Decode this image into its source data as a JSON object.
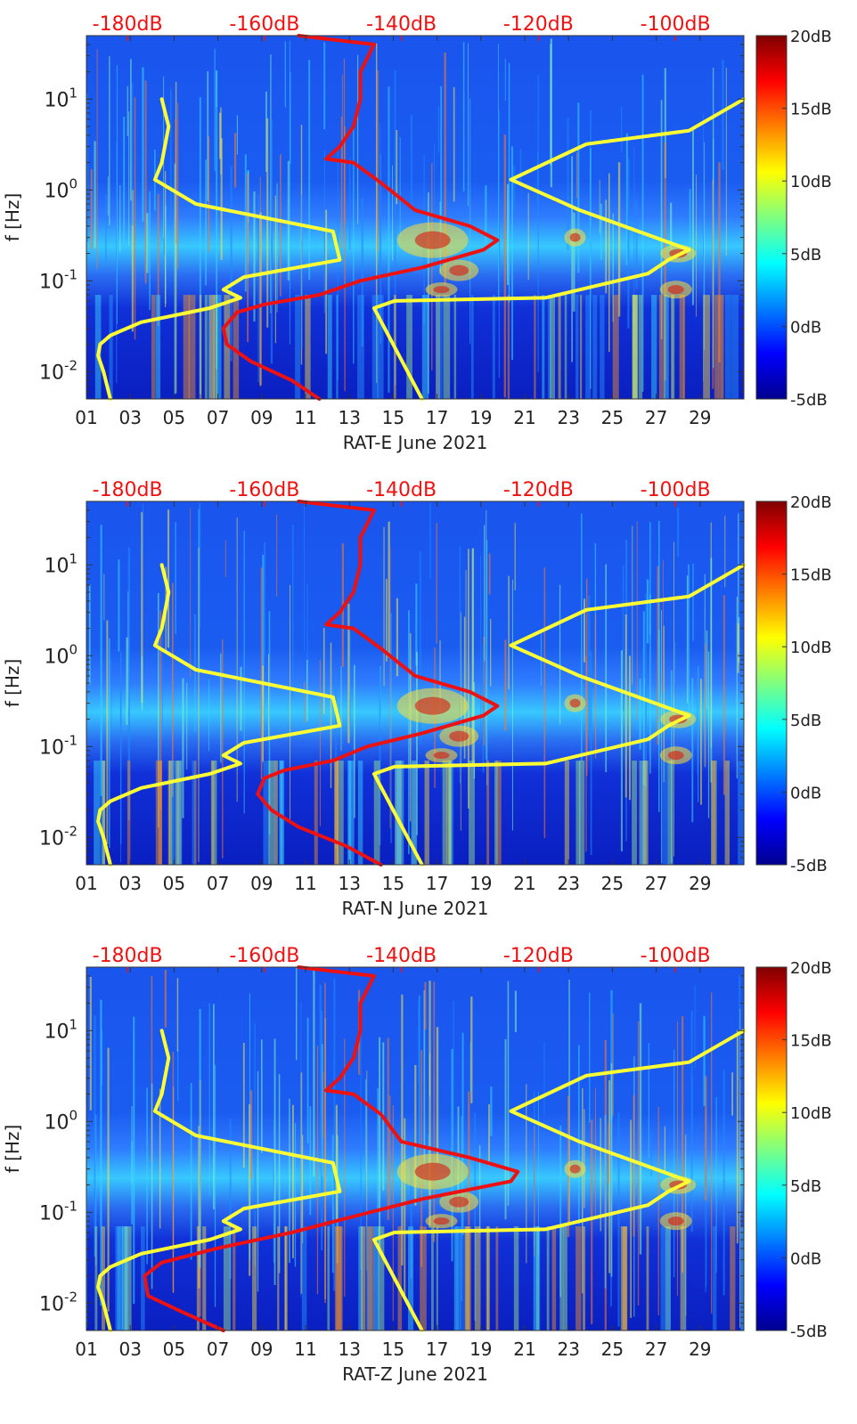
{
  "chart_data": [
    {
      "type": "heatmap",
      "panel": "RAT-E",
      "title": "",
      "xlabel": "RAT-E June 2021",
      "ylabel": "f [Hz]",
      "x_unit": "day of month",
      "xlim": [
        1,
        31
      ],
      "x_ticks": [
        "01",
        "03",
        "05",
        "07",
        "09",
        "11",
        "13",
        "15",
        "17",
        "19",
        "21",
        "23",
        "25",
        "27",
        "29"
      ],
      "y_scale": "log",
      "ylim": [
        0.005,
        50
      ],
      "y_ticks": [
        "10^-2",
        "10^-1",
        "10^0",
        "10^1"
      ],
      "top_axis_ticks": [
        "-180dB",
        "-160dB",
        "-140dB",
        "-120dB",
        "-100dB"
      ],
      "top_axis_range_dB": [
        -186,
        -90
      ],
      "colorbar": {
        "range_dB": [
          -5,
          20
        ],
        "ticks": [
          "-5dB",
          "0dB",
          "5dB",
          "10dB",
          "15dB",
          "20dB"
        ],
        "colormap": "jet"
      },
      "series": [
        {
          "name": "yellow-noise-model-low",
          "color": "#ffff33",
          "points": [
            [
              -182.5,
              0.005
            ],
            [
              -183.5,
              0.01
            ],
            [
              -184.3,
              0.015
            ],
            [
              -184,
              0.02
            ],
            [
              -182.5,
              0.025
            ],
            [
              -178,
              0.035
            ],
            [
              -168,
              0.05
            ],
            [
              -163.5,
              0.065
            ],
            [
              -166,
              0.08
            ],
            [
              -163,
              0.11
            ],
            [
              -149,
              0.17
            ],
            [
              -150,
              0.35
            ],
            [
              -170,
              0.7
            ],
            [
              -176,
              1.3
            ],
            [
              -175,
              2
            ],
            [
              -174,
              5
            ],
            [
              -175,
              10
            ]
          ]
        },
        {
          "name": "yellow-noise-model-high",
          "color": "#ffff33",
          "points": [
            [
              -137,
              0.005
            ],
            [
              -144,
              0.05
            ],
            [
              -141,
              0.06
            ],
            [
              -119,
              0.065
            ],
            [
              -104,
              0.12
            ],
            [
              -101,
              0.17
            ],
            [
              -98,
              0.22
            ],
            [
              -114,
              0.6
            ],
            [
              -124,
              1.3
            ],
            [
              -113,
              3.2
            ],
            [
              -98,
              4.5
            ],
            [
              -90,
              10
            ]
          ]
        },
        {
          "name": "red-median-psd",
          "color": "#ee1111",
          "points": [
            [
              -152,
              0.005
            ],
            [
              -156,
              0.008
            ],
            [
              -162,
              0.013
            ],
            [
              -165.5,
              0.02
            ],
            [
              -166,
              0.03
            ],
            [
              -164,
              0.045
            ],
            [
              -160,
              0.055
            ],
            [
              -152,
              0.07
            ],
            [
              -146,
              0.1
            ],
            [
              -137,
              0.14
            ],
            [
              -128,
              0.22
            ],
            [
              -126,
              0.28
            ],
            [
              -130,
              0.4
            ],
            [
              -138,
              0.6
            ],
            [
              -143,
              1.2
            ],
            [
              -147,
              2
            ],
            [
              -151,
              2.2
            ],
            [
              -149,
              3
            ],
            [
              -147,
              5
            ],
            [
              -146,
              10
            ],
            [
              -146,
              20
            ],
            [
              -144,
              40
            ],
            [
              -155,
              50
            ]
          ]
        }
      ]
    },
    {
      "type": "heatmap",
      "panel": "RAT-N",
      "title": "",
      "xlabel": "RAT-N June 2021",
      "ylabel": "f [Hz]",
      "x_unit": "day of month",
      "xlim": [
        1,
        31
      ],
      "x_ticks": [
        "01",
        "03",
        "05",
        "07",
        "09",
        "11",
        "13",
        "15",
        "17",
        "19",
        "21",
        "23",
        "25",
        "27",
        "29"
      ],
      "y_scale": "log",
      "ylim": [
        0.005,
        50
      ],
      "y_ticks": [
        "10^-2",
        "10^-1",
        "10^0",
        "10^1"
      ],
      "top_axis_ticks": [
        "-180dB",
        "-160dB",
        "-140dB",
        "-120dB",
        "-100dB"
      ],
      "top_axis_range_dB": [
        -186,
        -90
      ],
      "colorbar": {
        "range_dB": [
          -5,
          20
        ],
        "ticks": [
          "-5dB",
          "0dB",
          "5dB",
          "10dB",
          "15dB",
          "20dB"
        ],
        "colormap": "jet"
      },
      "series": [
        {
          "name": "yellow-noise-model-low",
          "color": "#ffff33",
          "points": [
            [
              -182.5,
              0.005
            ],
            [
              -183.5,
              0.01
            ],
            [
              -184.3,
              0.015
            ],
            [
              -184,
              0.02
            ],
            [
              -182.5,
              0.025
            ],
            [
              -178,
              0.035
            ],
            [
              -168,
              0.05
            ],
            [
              -163.5,
              0.065
            ],
            [
              -166,
              0.08
            ],
            [
              -163,
              0.11
            ],
            [
              -149,
              0.17
            ],
            [
              -150,
              0.35
            ],
            [
              -170,
              0.7
            ],
            [
              -176,
              1.3
            ],
            [
              -175,
              2
            ],
            [
              -174,
              5
            ],
            [
              -175,
              10
            ]
          ]
        },
        {
          "name": "yellow-noise-model-high",
          "color": "#ffff33",
          "points": [
            [
              -137,
              0.005
            ],
            [
              -144,
              0.05
            ],
            [
              -141,
              0.06
            ],
            [
              -119,
              0.065
            ],
            [
              -104,
              0.12
            ],
            [
              -101,
              0.17
            ],
            [
              -98,
              0.22
            ],
            [
              -114,
              0.6
            ],
            [
              -124,
              1.3
            ],
            [
              -113,
              3.2
            ],
            [
              -98,
              4.5
            ],
            [
              -90,
              10
            ]
          ]
        },
        {
          "name": "red-median-psd",
          "color": "#ee1111",
          "points": [
            [
              -143,
              0.005
            ],
            [
              -148,
              0.008
            ],
            [
              -155,
              0.013
            ],
            [
              -159,
              0.02
            ],
            [
              -161,
              0.03
            ],
            [
              -160,
              0.045
            ],
            [
              -157,
              0.055
            ],
            [
              -150,
              0.07
            ],
            [
              -145,
              0.1
            ],
            [
              -137,
              0.14
            ],
            [
              -128,
              0.22
            ],
            [
              -126,
              0.28
            ],
            [
              -130,
              0.4
            ],
            [
              -138,
              0.6
            ],
            [
              -143,
              1.2
            ],
            [
              -147,
              2
            ],
            [
              -151,
              2.2
            ],
            [
              -149,
              3
            ],
            [
              -147,
              5
            ],
            [
              -146,
              10
            ],
            [
              -146,
              20
            ],
            [
              -144,
              40
            ],
            [
              -155,
              50
            ]
          ]
        }
      ]
    },
    {
      "type": "heatmap",
      "panel": "RAT-Z",
      "title": "",
      "xlabel": "RAT-Z June 2021",
      "ylabel": "f [Hz]",
      "x_unit": "day of month",
      "xlim": [
        1,
        31
      ],
      "x_ticks": [
        "01",
        "03",
        "05",
        "07",
        "09",
        "11",
        "13",
        "15",
        "17",
        "19",
        "21",
        "23",
        "25",
        "27",
        "29"
      ],
      "y_scale": "log",
      "ylim": [
        0.005,
        50
      ],
      "y_ticks": [
        "10^-2",
        "10^-1",
        "10^0",
        "10^1"
      ],
      "top_axis_ticks": [
        "-180dB",
        "-160dB",
        "-140dB",
        "-120dB",
        "-100dB"
      ],
      "top_axis_range_dB": [
        -186,
        -90
      ],
      "colorbar": {
        "range_dB": [
          -5,
          20
        ],
        "ticks": [
          "-5dB",
          "0dB",
          "5dB",
          "10dB",
          "15dB",
          "20dB"
        ],
        "colormap": "jet"
      },
      "series": [
        {
          "name": "yellow-noise-model-low",
          "color": "#ffff33",
          "points": [
            [
              -182.5,
              0.005
            ],
            [
              -183.5,
              0.01
            ],
            [
              -184.3,
              0.015
            ],
            [
              -184,
              0.02
            ],
            [
              -182.5,
              0.025
            ],
            [
              -178,
              0.035
            ],
            [
              -168,
              0.05
            ],
            [
              -163.5,
              0.065
            ],
            [
              -166,
              0.08
            ],
            [
              -163,
              0.11
            ],
            [
              -149,
              0.17
            ],
            [
              -150,
              0.35
            ],
            [
              -170,
              0.7
            ],
            [
              -176,
              1.3
            ],
            [
              -175,
              2
            ],
            [
              -174,
              5
            ],
            [
              -175,
              10
            ]
          ]
        },
        {
          "name": "yellow-noise-model-high",
          "color": "#ffff33",
          "points": [
            [
              -137,
              0.005
            ],
            [
              -144,
              0.05
            ],
            [
              -141,
              0.06
            ],
            [
              -119,
              0.065
            ],
            [
              -104,
              0.12
            ],
            [
              -101,
              0.17
            ],
            [
              -98,
              0.22
            ],
            [
              -114,
              0.6
            ],
            [
              -124,
              1.3
            ],
            [
              -113,
              3.2
            ],
            [
              -98,
              4.5
            ],
            [
              -90,
              10
            ]
          ]
        },
        {
          "name": "red-median-psd",
          "color": "#ee1111",
          "points": [
            [
              -166,
              0.005
            ],
            [
              -172,
              0.008
            ],
            [
              -177,
              0.012
            ],
            [
              -177.5,
              0.02
            ],
            [
              -175,
              0.028
            ],
            [
              -167,
              0.04
            ],
            [
              -156,
              0.06
            ],
            [
              -147,
              0.09
            ],
            [
              -137,
              0.14
            ],
            [
              -124,
              0.22
            ],
            [
              -123,
              0.28
            ],
            [
              -130,
              0.4
            ],
            [
              -140,
              0.6
            ],
            [
              -143,
              1.2
            ],
            [
              -147,
              2
            ],
            [
              -151,
              2.2
            ],
            [
              -149,
              3
            ],
            [
              -147,
              5
            ],
            [
              -146,
              10
            ],
            [
              -146,
              20
            ],
            [
              -144,
              40
            ],
            [
              -155,
              50
            ]
          ]
        }
      ]
    }
  ]
}
